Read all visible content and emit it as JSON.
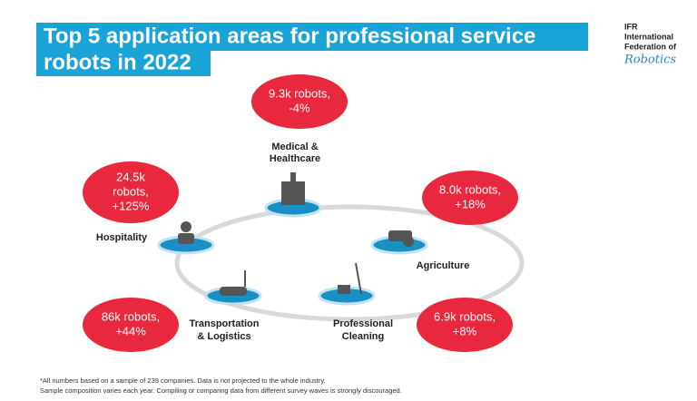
{
  "header": {
    "title_lines": [
      "Top 5 application areas for professional service",
      "robots in 2022"
    ]
  },
  "logo": {
    "lines": [
      "IFR",
      "International",
      "Federation of"
    ],
    "script": "Robotics"
  },
  "nodes": [
    {
      "label_lines": [
        "Medical &",
        "Healthcare"
      ],
      "stat_lines": [
        "9.3k robots,",
        "-4%"
      ]
    },
    {
      "label_lines": [
        "Agriculture"
      ],
      "stat_lines": [
        "8.0k robots,",
        "+18%"
      ]
    },
    {
      "label_lines": [
        "Professional",
        "Cleaning"
      ],
      "stat_lines": [
        "6.9k robots,",
        "+8%"
      ]
    },
    {
      "label_lines": [
        "Transportation",
        "& Logistics"
      ],
      "stat_lines": [
        "86k robots,",
        "+44%"
      ]
    },
    {
      "label_lines": [
        "Hospitality"
      ],
      "stat_lines": [
        "24.5k",
        "robots,",
        "+125%"
      ]
    }
  ],
  "footnote": [
    "*All numbers based on a sample of 239 companies. Data is not projected to the whole industry.",
    "Sample composition varies each year. Compiling or comparing data from different survey waves is strongly discouraged."
  ]
}
